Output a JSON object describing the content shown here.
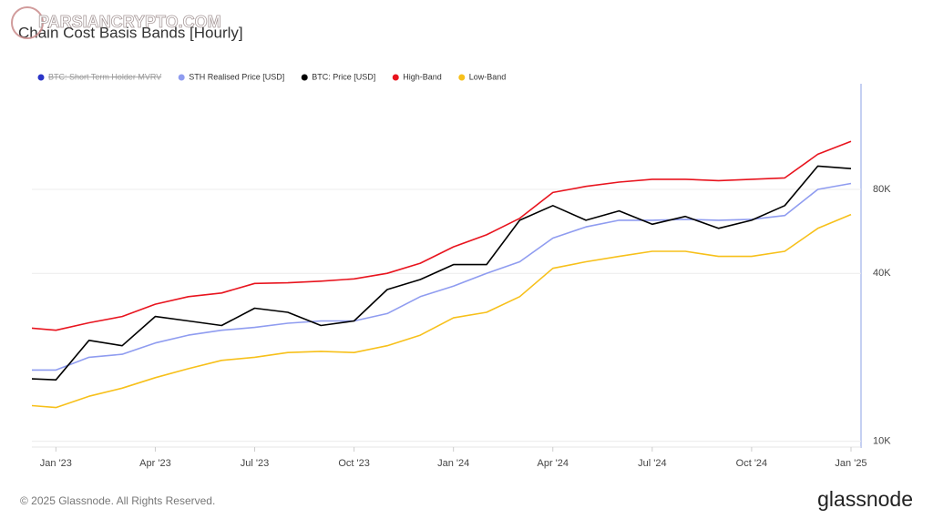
{
  "chart_data": {
    "type": "line",
    "title": "Chain Cost Basis Bands [Hourly]",
    "watermark": "PARSIANCRYPTO.COM",
    "footer": "© 2025 Glassnode. All Rights Reserved.",
    "brand": "glassnode",
    "disabled_series": [
      {
        "name": "BTC: Short Term Holder MVRV",
        "color": "#2b35c8"
      }
    ],
    "x": [
      "2022-12",
      "2023-01",
      "2023-02",
      "2023-03",
      "2023-04",
      "2023-05",
      "2023-06",
      "2023-07",
      "2023-08",
      "2023-09",
      "2023-10",
      "2023-11",
      "2023-12",
      "2024-01",
      "2024-02",
      "2024-03",
      "2024-04",
      "2024-05",
      "2024-06",
      "2024-07",
      "2024-08",
      "2024-09",
      "2024-10",
      "2024-11",
      "2024-12",
      "2025-01"
    ],
    "series": [
      {
        "name": "STH Realised Price [USD]",
        "color": "#8f9cf0",
        "values": [
          18000,
          18000,
          20000,
          20500,
          22500,
          24000,
          25000,
          25600,
          26500,
          27000,
          27000,
          28700,
          33000,
          36000,
          40000,
          44000,
          53500,
          58700,
          62000,
          62000,
          62500,
          62000,
          62500,
          64500,
          80000,
          84000
        ]
      },
      {
        "name": "BTC: Price [USD]",
        "color": "#000000",
        "values": [
          16800,
          16600,
          23000,
          22000,
          28000,
          27000,
          26000,
          30000,
          29000,
          26000,
          27000,
          35000,
          38000,
          43000,
          43000,
          62000,
          70000,
          62000,
          67000,
          60000,
          64000,
          58000,
          62000,
          70000,
          97000,
          95000
        ]
      },
      {
        "name": "High-Band",
        "color": "#e8141e",
        "values": [
          25600,
          25000,
          26600,
          28000,
          31000,
          33000,
          34000,
          36800,
          37000,
          37500,
          38200,
          40000,
          43500,
          49800,
          55000,
          63000,
          78000,
          82000,
          85000,
          87000,
          87000,
          86000,
          87000,
          88000,
          107000,
          119000
        ]
      },
      {
        "name": "Low-Band",
        "color": "#f7c01a",
        "values": [
          13500,
          13200,
          14500,
          15500,
          16900,
          18200,
          19500,
          20000,
          20800,
          21000,
          20800,
          22000,
          24000,
          27700,
          29000,
          33000,
          41700,
          44000,
          46000,
          48000,
          48000,
          46000,
          46000,
          48000,
          58000,
          65000
        ]
      }
    ],
    "xlim": [
      "2022-12",
      "2025-01"
    ],
    "xticks": [
      {
        "value": "2023-01",
        "label": "Jan '23"
      },
      {
        "value": "2023-04",
        "label": "Apr '23"
      },
      {
        "value": "2023-07",
        "label": "Jul '23"
      },
      {
        "value": "2023-10",
        "label": "Oct '23"
      },
      {
        "value": "2024-01",
        "label": "Jan '24"
      },
      {
        "value": "2024-04",
        "label": "Apr '24"
      },
      {
        "value": "2024-07",
        "label": "Jul '24"
      },
      {
        "value": "2024-10",
        "label": "Oct '24"
      },
      {
        "value": "2025-01",
        "label": "Jan '25"
      }
    ],
    "ylim": [
      9600,
      190000
    ],
    "yticks": [
      {
        "value": 10000,
        "label": "10K"
      },
      {
        "value": 40000,
        "label": "40K"
      },
      {
        "value": 80000,
        "label": "80K"
      }
    ],
    "log_scale": true,
    "grid": true
  }
}
